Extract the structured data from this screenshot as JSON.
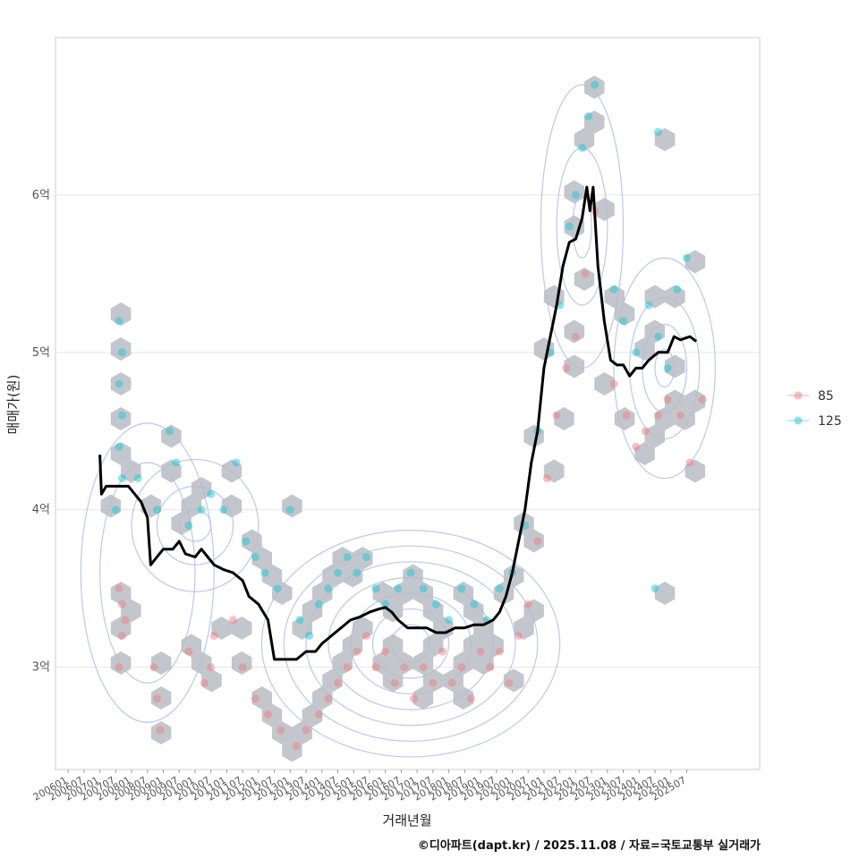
{
  "chart_data": {
    "type": "scatter",
    "xlabel": "거래년월",
    "ylabel": "매매가(원)",
    "x_ticks": [
      "200601",
      "200607",
      "200701",
      "200707",
      "200801",
      "200807",
      "200901",
      "200907",
      "201001",
      "201007",
      "201101",
      "201107",
      "201201",
      "201207",
      "201301",
      "201307",
      "201401",
      "201407",
      "201501",
      "201507",
      "201601",
      "201607",
      "201701",
      "201707",
      "201801",
      "201807",
      "201901",
      "201907",
      "202001",
      "202007",
      "202101",
      "202107",
      "202201",
      "202207",
      "202301",
      "202307",
      "202401",
      "202407",
      "202501",
      "202507"
    ],
    "y_ticks": [
      {
        "value": 3,
        "label": "3억"
      },
      {
        "value": 4,
        "label": "4억"
      },
      {
        "value": 5,
        "label": "5억"
      },
      {
        "value": 6,
        "label": "6억"
      }
    ],
    "xlim": [
      2005.6,
      2027.8
    ],
    "ylim": [
      2.35,
      7.0
    ],
    "grid": true,
    "legend_position": "right",
    "series": [
      {
        "name": "85",
        "color": "#f08080",
        "points": [
          [
            2007.6,
            3.5
          ],
          [
            2007.7,
            3.4
          ],
          [
            2007.8,
            3.3
          ],
          [
            2007.7,
            3.2
          ],
          [
            2007.6,
            3.0
          ],
          [
            2008.7,
            3.0
          ],
          [
            2008.8,
            2.8
          ],
          [
            2008.9,
            2.6
          ],
          [
            2009.8,
            3.1
          ],
          [
            2010.5,
            3.0
          ],
          [
            2010.6,
            3.2
          ],
          [
            2010.3,
            2.9
          ],
          [
            2011.2,
            3.3
          ],
          [
            2011.5,
            3.0
          ],
          [
            2011.9,
            2.8
          ],
          [
            2012.3,
            2.7
          ],
          [
            2012.7,
            2.6
          ],
          [
            2013.2,
            2.5
          ],
          [
            2013.5,
            2.6
          ],
          [
            2013.9,
            2.7
          ],
          [
            2014.2,
            2.8
          ],
          [
            2014.5,
            2.9
          ],
          [
            2014.8,
            3.0
          ],
          [
            2015.1,
            3.1
          ],
          [
            2015.4,
            3.2
          ],
          [
            2015.7,
            3.0
          ],
          [
            2016.0,
            3.1
          ],
          [
            2016.3,
            2.9
          ],
          [
            2016.6,
            3.0
          ],
          [
            2016.9,
            2.8
          ],
          [
            2017.2,
            3.0
          ],
          [
            2017.5,
            2.9
          ],
          [
            2017.8,
            3.1
          ],
          [
            2018.1,
            2.9
          ],
          [
            2018.4,
            3.0
          ],
          [
            2018.7,
            2.8
          ],
          [
            2019.0,
            3.1
          ],
          [
            2019.3,
            3.0
          ],
          [
            2019.6,
            3.1
          ],
          [
            2019.9,
            2.9
          ],
          [
            2020.2,
            3.2
          ],
          [
            2020.5,
            3.4
          ],
          [
            2020.8,
            3.8
          ],
          [
            2021.1,
            4.2
          ],
          [
            2021.4,
            4.6
          ],
          [
            2021.7,
            4.9
          ],
          [
            2022.0,
            5.1
          ],
          [
            2022.3,
            5.5
          ],
          [
            2022.6,
            5.9
          ],
          [
            2023.2,
            4.8
          ],
          [
            2023.6,
            4.6
          ],
          [
            2023.9,
            4.4
          ],
          [
            2024.2,
            4.5
          ],
          [
            2024.6,
            4.6
          ],
          [
            2024.9,
            4.7
          ],
          [
            2025.3,
            4.6
          ],
          [
            2025.6,
            4.3
          ],
          [
            2026.0,
            4.7
          ]
        ]
      },
      {
        "name": "125",
        "color": "#1fc7d4",
        "points": [
          [
            2007.6,
            5.2
          ],
          [
            2007.7,
            5.0
          ],
          [
            2007.6,
            4.8
          ],
          [
            2007.7,
            4.6
          ],
          [
            2007.6,
            4.4
          ],
          [
            2007.7,
            4.2
          ],
          [
            2007.5,
            4.0
          ],
          [
            2008.2,
            4.2
          ],
          [
            2008.8,
            4.0
          ],
          [
            2009.2,
            4.5
          ],
          [
            2009.4,
            4.3
          ],
          [
            2009.8,
            3.9
          ],
          [
            2010.2,
            4.0
          ],
          [
            2010.5,
            4.1
          ],
          [
            2010.9,
            4.0
          ],
          [
            2011.3,
            4.3
          ],
          [
            2011.6,
            3.8
          ],
          [
            2011.9,
            3.7
          ],
          [
            2012.2,
            3.6
          ],
          [
            2012.6,
            3.5
          ],
          [
            2013.0,
            4.0
          ],
          [
            2013.3,
            3.3
          ],
          [
            2013.6,
            3.2
          ],
          [
            2013.9,
            3.4
          ],
          [
            2014.2,
            3.5
          ],
          [
            2014.5,
            3.6
          ],
          [
            2014.8,
            3.7
          ],
          [
            2015.1,
            3.6
          ],
          [
            2015.4,
            3.7
          ],
          [
            2015.7,
            3.5
          ],
          [
            2016.0,
            3.4
          ],
          [
            2016.4,
            3.5
          ],
          [
            2016.8,
            3.6
          ],
          [
            2017.2,
            3.5
          ],
          [
            2017.6,
            3.4
          ],
          [
            2018.0,
            3.3
          ],
          [
            2018.4,
            3.5
          ],
          [
            2018.8,
            3.4
          ],
          [
            2019.2,
            3.3
          ],
          [
            2019.6,
            3.5
          ],
          [
            2020.0,
            3.6
          ],
          [
            2020.4,
            3.9
          ],
          [
            2020.8,
            4.5
          ],
          [
            2021.2,
            5.0
          ],
          [
            2021.5,
            5.3
          ],
          [
            2021.8,
            5.8
          ],
          [
            2022.0,
            6.0
          ],
          [
            2022.2,
            6.3
          ],
          [
            2022.4,
            6.5
          ],
          [
            2022.6,
            6.7
          ],
          [
            2023.2,
            5.4
          ],
          [
            2023.5,
            5.2
          ],
          [
            2023.9,
            5.0
          ],
          [
            2024.3,
            5.3
          ],
          [
            2024.6,
            5.1
          ],
          [
            2024.9,
            4.9
          ],
          [
            2025.2,
            5.4
          ],
          [
            2025.5,
            5.6
          ],
          [
            2024.6,
            6.4
          ],
          [
            2024.5,
            3.5
          ]
        ]
      }
    ],
    "avg_line": [
      [
        2007.0,
        4.35
      ],
      [
        2007.05,
        4.1
      ],
      [
        2007.2,
        4.15
      ],
      [
        2007.6,
        4.15
      ],
      [
        2007.9,
        4.15
      ],
      [
        2008.1,
        4.1
      ],
      [
        2008.3,
        4.05
      ],
      [
        2008.5,
        3.95
      ],
      [
        2008.6,
        3.65
      ],
      [
        2008.8,
        3.7
      ],
      [
        2009.0,
        3.75
      ],
      [
        2009.3,
        3.75
      ],
      [
        2009.5,
        3.8
      ],
      [
        2009.7,
        3.72
      ],
      [
        2010.0,
        3.7
      ],
      [
        2010.2,
        3.75
      ],
      [
        2010.4,
        3.7
      ],
      [
        2010.6,
        3.65
      ],
      [
        2010.9,
        3.62
      ],
      [
        2011.2,
        3.6
      ],
      [
        2011.5,
        3.55
      ],
      [
        2011.7,
        3.45
      ],
      [
        2012.0,
        3.4
      ],
      [
        2012.3,
        3.3
      ],
      [
        2012.5,
        3.05
      ],
      [
        2012.8,
        3.05
      ],
      [
        2013.0,
        3.05
      ],
      [
        2013.2,
        3.05
      ],
      [
        2013.5,
        3.1
      ],
      [
        2013.8,
        3.1
      ],
      [
        2014.0,
        3.15
      ],
      [
        2014.3,
        3.2
      ],
      [
        2014.6,
        3.25
      ],
      [
        2014.9,
        3.3
      ],
      [
        2015.2,
        3.32
      ],
      [
        2015.5,
        3.35
      ],
      [
        2015.8,
        3.37
      ],
      [
        2016.0,
        3.38
      ],
      [
        2016.2,
        3.35
      ],
      [
        2016.4,
        3.3
      ],
      [
        2016.7,
        3.25
      ],
      [
        2017.0,
        3.25
      ],
      [
        2017.3,
        3.25
      ],
      [
        2017.6,
        3.22
      ],
      [
        2017.9,
        3.22
      ],
      [
        2018.2,
        3.25
      ],
      [
        2018.5,
        3.25
      ],
      [
        2018.8,
        3.27
      ],
      [
        2019.1,
        3.27
      ],
      [
        2019.4,
        3.3
      ],
      [
        2019.6,
        3.35
      ],
      [
        2019.8,
        3.45
      ],
      [
        2020.0,
        3.6
      ],
      [
        2020.2,
        3.8
      ],
      [
        2020.4,
        4.0
      ],
      [
        2020.6,
        4.3
      ],
      [
        2020.8,
        4.5
      ],
      [
        2021.0,
        4.9
      ],
      [
        2021.2,
        5.1
      ],
      [
        2021.4,
        5.3
      ],
      [
        2021.6,
        5.55
      ],
      [
        2021.8,
        5.7
      ],
      [
        2022.0,
        5.72
      ],
      [
        2022.2,
        5.85
      ],
      [
        2022.35,
        6.05
      ],
      [
        2022.45,
        5.9
      ],
      [
        2022.55,
        6.05
      ],
      [
        2022.7,
        5.55
      ],
      [
        2022.9,
        5.2
      ],
      [
        2023.1,
        4.95
      ],
      [
        2023.3,
        4.92
      ],
      [
        2023.5,
        4.92
      ],
      [
        2023.7,
        4.85
      ],
      [
        2023.9,
        4.9
      ],
      [
        2024.1,
        4.9
      ],
      [
        2024.3,
        4.95
      ],
      [
        2024.6,
        5.0
      ],
      [
        2024.9,
        5.0
      ],
      [
        2025.1,
        5.1
      ],
      [
        2025.3,
        5.08
      ],
      [
        2025.6,
        5.1
      ],
      [
        2025.8,
        5.07
      ]
    ]
  },
  "caption": "©디아파트(dapt.kr) / 2025.11.08 / 자료=국토교통부 실거래가"
}
